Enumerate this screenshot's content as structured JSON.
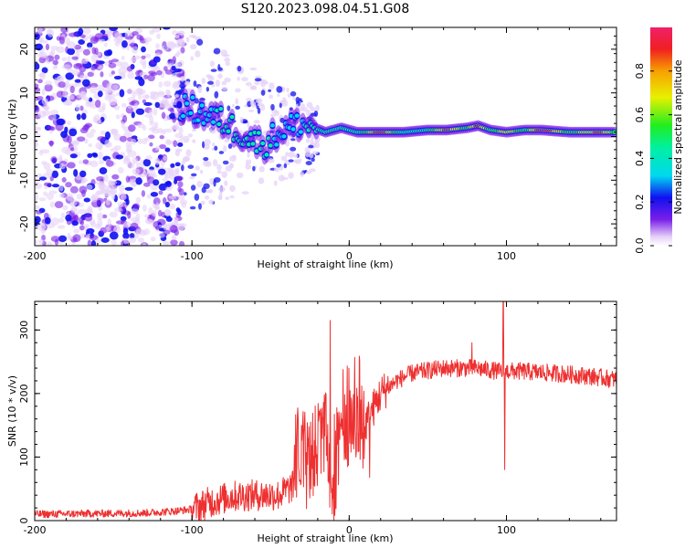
{
  "figure_title": "S120.2023.098.04.51.G08",
  "chart_data": [
    {
      "type": "heatmap",
      "xlabel": "Height of straight line (km)",
      "ylabel": "Frequency (Hz)",
      "xlim": [
        -200,
        170
      ],
      "ylim": [
        -25,
        25
      ],
      "xticks": [
        -200,
        -100,
        0,
        100
      ],
      "yticks": [
        -20,
        -10,
        0,
        10,
        20
      ],
      "colorbar": {
        "label": "Normalized spectral amplitude",
        "range": [
          0,
          1
        ],
        "ticks": [
          0.0,
          0.2,
          0.4,
          0.6,
          0.8
        ]
      },
      "noise_region_x": [
        -200,
        -105
      ],
      "ridge": [
        {
          "x": -108,
          "f": 7,
          "a": 0.25
        },
        {
          "x": -90,
          "f": 5,
          "a": 0.3
        },
        {
          "x": -78,
          "f": 3,
          "a": 0.35
        },
        {
          "x": -65,
          "f": 0,
          "a": 0.35
        },
        {
          "x": -55,
          "f": -2,
          "a": 0.35
        },
        {
          "x": -45,
          "f": 1,
          "a": 0.3
        },
        {
          "x": -32,
          "f": 3,
          "a": 0.3
        },
        {
          "x": -22,
          "f": 2,
          "a": 0.35
        },
        {
          "x": -15,
          "f": 1,
          "a": 0.4
        },
        {
          "x": -5,
          "f": 2,
          "a": 0.45
        },
        {
          "x": 5,
          "f": 1,
          "a": 0.5
        },
        {
          "x": 20,
          "f": 1,
          "a": 0.9
        },
        {
          "x": 35,
          "f": 1,
          "a": 0.5
        },
        {
          "x": 50,
          "f": 1.5,
          "a": 0.55
        },
        {
          "x": 62,
          "f": 1.5,
          "a": 0.85
        },
        {
          "x": 75,
          "f": 2,
          "a": 0.6
        },
        {
          "x": 82,
          "f": 2.5,
          "a": 0.9
        },
        {
          "x": 90,
          "f": 1.5,
          "a": 0.55
        },
        {
          "x": 100,
          "f": 1,
          "a": 0.8
        },
        {
          "x": 112,
          "f": 1.5,
          "a": 0.55
        },
        {
          "x": 122,
          "f": 1.5,
          "a": 0.95
        },
        {
          "x": 140,
          "f": 1,
          "a": 0.6
        },
        {
          "x": 160,
          "f": 1,
          "a": 0.85
        },
        {
          "x": 170,
          "f": 1,
          "a": 0.6
        }
      ]
    },
    {
      "type": "line",
      "xlabel": "Height of straight line (km)",
      "ylabel": "SNR (10 * v/v)",
      "xlim": [
        -200,
        170
      ],
      "ylim": [
        0,
        345
      ],
      "xticks": [
        -200,
        -100,
        0,
        100
      ],
      "yticks": [
        0,
        100,
        200,
        300
      ],
      "color": "#ee3030",
      "baseline": [
        {
          "x": -200,
          "y": 10
        },
        {
          "x": -130,
          "y": 12
        },
        {
          "x": -110,
          "y": 15
        },
        {
          "x": -100,
          "y": 18
        },
        {
          "x": -90,
          "y": 28
        },
        {
          "x": -75,
          "y": 38
        },
        {
          "x": -60,
          "y": 40
        },
        {
          "x": -45,
          "y": 40
        },
        {
          "x": -35,
          "y": 55
        },
        {
          "x": -28,
          "y": 80
        },
        {
          "x": -22,
          "y": 110
        },
        {
          "x": -15,
          "y": 140
        },
        {
          "x": -10,
          "y": 40
        },
        {
          "x": -5,
          "y": 130
        },
        {
          "x": 0,
          "y": 150
        },
        {
          "x": 10,
          "y": 150
        },
        {
          "x": 20,
          "y": 200
        },
        {
          "x": 30,
          "y": 220
        },
        {
          "x": 40,
          "y": 232
        },
        {
          "x": 60,
          "y": 240
        },
        {
          "x": 80,
          "y": 240
        },
        {
          "x": 95,
          "y": 235
        },
        {
          "x": 110,
          "y": 235
        },
        {
          "x": 130,
          "y": 232
        },
        {
          "x": 150,
          "y": 228
        },
        {
          "x": 170,
          "y": 222
        }
      ],
      "spikes": [
        {
          "x": -12,
          "y": 315
        },
        {
          "x": 98,
          "y": 345
        },
        {
          "x": 99,
          "y": 80
        },
        {
          "x": 13,
          "y": 68
        },
        {
          "x": 78,
          "y": 280
        }
      ]
    }
  ]
}
